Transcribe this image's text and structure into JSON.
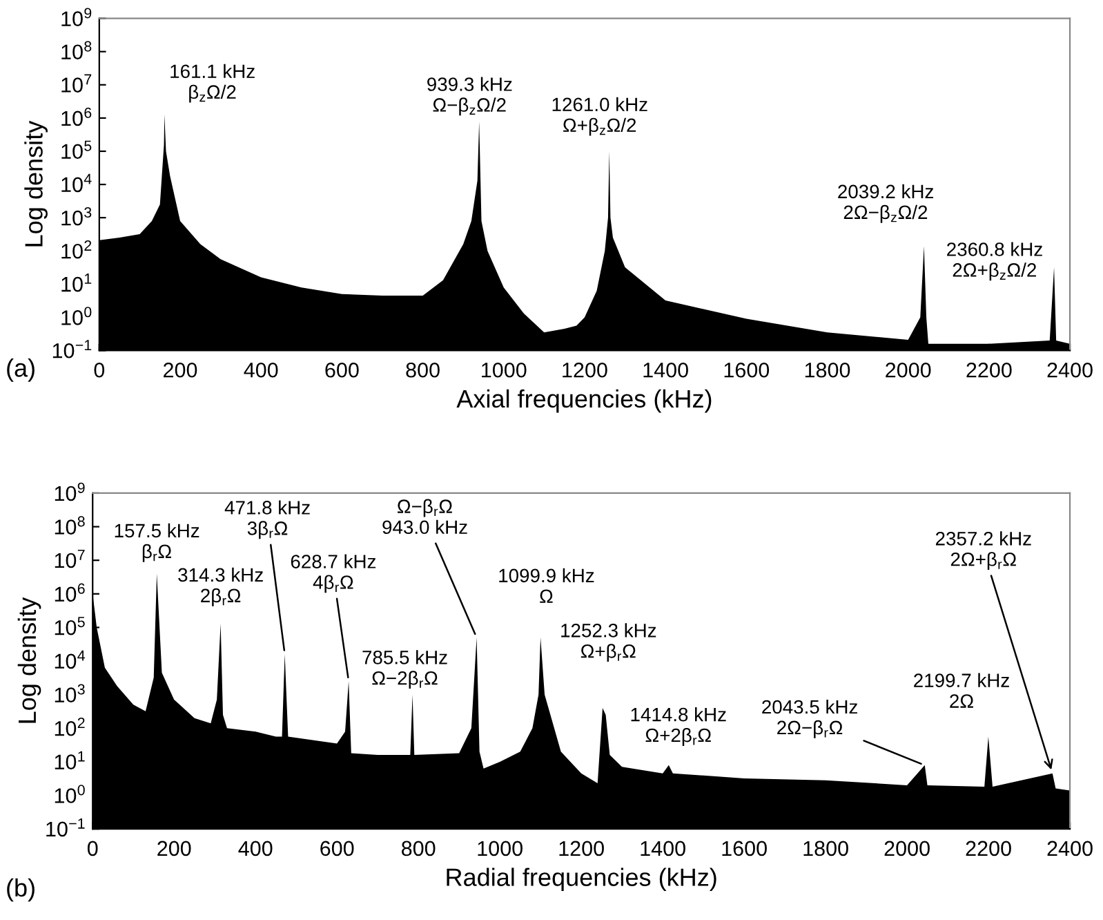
{
  "chart_data": [
    {
      "type": "area",
      "xlabel": "Axial frequencies (kHz)",
      "ylabel": "Log density",
      "log": "y",
      "grid": false,
      "xlim": [
        0,
        2400
      ],
      "xticks": [
        0,
        200,
        400,
        600,
        800,
        1000,
        1200,
        1400,
        1600,
        1800,
        2000,
        2200,
        2400
      ],
      "ylim": [
        0.1,
        1000000000
      ],
      "yticks": [
        {
          "value": 0.1,
          "label": "10$^{−1}$"
        },
        {
          "value": 1,
          "label": "10$^{0}$"
        },
        {
          "value": 10,
          "label": "10$^{1}$"
        },
        {
          "value": 100,
          "label": "10$^{2}$"
        },
        {
          "value": 1000,
          "label": "10$^{3}$"
        },
        {
          "value": 10000,
          "label": "10$^{4}$"
        },
        {
          "value": 100000,
          "label": "10$^{5}$"
        },
        {
          "value": 1000000,
          "label": "10$^{6}$"
        },
        {
          "value": 10000000,
          "label": "10$^{7}$"
        },
        {
          "value": 100000000,
          "label": "10$^{8}$"
        },
        {
          "value": 1000000000,
          "label": "10$^{9}$"
        }
      ],
      "series": [
        {
          "color": "#000000",
          "x": [
            0,
            50,
            100,
            130,
            150,
            160,
            161.1,
            165,
            175,
            200,
            250,
            300,
            400,
            500,
            600,
            700,
            800,
            850,
            900,
            920,
            935,
            939.3,
            945,
            960,
            1000,
            1050,
            1100,
            1150,
            1180,
            1200,
            1230,
            1250,
            1258,
            1261.0,
            1264,
            1270,
            1300,
            1400,
            1600,
            1800,
            2000,
            2030,
            2039.2,
            2045,
            2050,
            2200,
            2350,
            2360.8,
            2366,
            2400
          ],
          "values": [
            210,
            250,
            320,
            790,
            2500,
            160000,
            1300000,
            100000,
            18000,
            790,
            160,
            56,
            16,
            7.9,
            5,
            4.5,
            4.5,
            13,
            160,
            790,
            13000,
            790000,
            790,
            100,
            7.9,
            1.3,
            0.35,
            0.45,
            0.56,
            1,
            6.3,
            100,
            1000,
            100000,
            1000,
            250,
            32,
            3.2,
            0.9,
            0.35,
            0.21,
            1,
            140,
            1,
            0.16,
            0.16,
            0.2,
            32,
            0.2,
            0.16
          ]
        }
      ],
      "annotations": [
        {
          "text": "161.1 kHz\nβ$_{z}$Ω/2",
          "x": 161.1,
          "y": 1300000
        },
        {
          "text": "939.3 kHz\nΩ−β$_{z}$Ω/2",
          "x": 939.3,
          "y": 790000
        },
        {
          "text": "1261.0 kHz\nΩ+β$_{z}$Ω/2",
          "x": 1261.0,
          "y": 100000
        },
        {
          "text": "2039.2 kHz\n2Ω−β$_{z}$Ω/2",
          "x": 2039.2,
          "y": 140
        },
        {
          "text": "2360.8 kHz\n2Ω+β$_{z}$Ω/2",
          "x": 2360.8,
          "y": 32
        },
        "(a)"
      ]
    },
    {
      "type": "area",
      "xlabel": "Radial frequencies (kHz)",
      "ylabel": "Log density",
      "log": "y",
      "grid": false,
      "xlim": [
        0,
        2400
      ],
      "xticks": [
        0,
        200,
        400,
        600,
        800,
        1000,
        1200,
        1400,
        1600,
        1800,
        2000,
        2200,
        2400
      ],
      "ylim": [
        0.1,
        1000000000
      ],
      "yticks": [
        {
          "value": 0.1,
          "label": "10$^{−1}$"
        },
        {
          "value": 1,
          "label": "10$^{0}$"
        },
        {
          "value": 10,
          "label": "10$^{1}$"
        },
        {
          "value": 100,
          "label": "10$^{2}$"
        },
        {
          "value": 1000,
          "label": "10$^{3}$"
        },
        {
          "value": 10000,
          "label": "10$^{4}$"
        },
        {
          "value": 100000,
          "label": "10$^{5}$"
        },
        {
          "value": 1000000,
          "label": "10$^{6}$"
        },
        {
          "value": 10000000,
          "label": "10$^{7}$"
        },
        {
          "value": 100000000,
          "label": "10$^{8}$"
        },
        {
          "value": 1000000000,
          "label": "10$^{9}$"
        }
      ],
      "series": [
        {
          "color": "#000000",
          "x": [
            0,
            10,
            30,
            60,
            100,
            130,
            150,
            157.5,
            170,
            200,
            250,
            290,
            305,
            314.3,
            320,
            330,
            400,
            450,
            465,
            471.8,
            480,
            600,
            620,
            628.7,
            635,
            700,
            780,
            785.5,
            790,
            900,
            930,
            943.0,
            950,
            960,
            1000,
            1050,
            1080,
            1095,
            1099.9,
            1110,
            1150,
            1200,
            1240,
            1252.3,
            1260,
            1270,
            1300,
            1400,
            1414.8,
            1425,
            1600,
            1800,
            2000,
            2043.5,
            2050,
            2190,
            2199.7,
            2210,
            2357.2,
            2365,
            2400
          ],
          "values": [
            1000000,
            100000,
            6300,
            1800,
            500,
            320,
            3200,
            4000000,
            4500,
            710,
            200,
            140,
            710,
            130000,
            250,
            100,
            79,
            56,
            56,
            16000,
            56,
            35,
            79,
            2500,
            18,
            16,
            16,
            1000,
            16,
            18,
            100,
            50000,
            20,
            6.3,
            10,
            20,
            100,
            1000,
            50000,
            1000,
            20,
            4.5,
            2.3,
            400,
            250,
            16,
            7.1,
            4.5,
            7.9,
            4.5,
            3.2,
            2.8,
            2,
            7.9,
            2,
            1.8,
            56,
            1.8,
            4.5,
            1.6,
            1.4
          ]
        }
      ],
      "annotations": [
        {
          "text": "157.5 kHz\nβ$_{r}$Ω",
          "x": 157.5,
          "y": 4000000
        },
        {
          "text": "314.3 kHz\n2β$_{r}$Ω",
          "x": 314.3,
          "y": 130000
        },
        {
          "text": "471.8 kHz\n3β$_{r}$Ω",
          "x": 471.8,
          "y": 16000
        },
        {
          "text": "628.7 kHz\n4β$_{r}$Ω",
          "x": 628.7,
          "y": 2500
        },
        {
          "text": "785.5 kHz\nΩ−2β$_{r}$Ω",
          "x": 785.5,
          "y": 1000
        },
        {
          "text": "Ω−β$_{r}$Ω\n943.0 kHz",
          "x": 943.0,
          "y": 50000
        },
        {
          "text": "1099.9 kHz\nΩ",
          "x": 1099.9,
          "y": 50000
        },
        {
          "text": "1252.3 kHz\nΩ+β$_{r}$Ω",
          "x": 1252.3,
          "y": 400
        },
        {
          "text": "1414.8 kHz\nΩ+2β$_{r}$Ω",
          "x": 1414.8,
          "y": 7.9
        },
        {
          "text": "2043.5 kHz\n2Ω−β$_{r}$Ω",
          "x": 2043.5,
          "y": 7.9
        },
        {
          "text": "2199.7 kHz\n2Ω",
          "x": 2199.7,
          "y": 56
        },
        {
          "text": "2357.2 kHz\n2Ω+β$_{r}$Ω",
          "x": 2357.2,
          "y": 4.5
        },
        "(b)"
      ]
    }
  ]
}
